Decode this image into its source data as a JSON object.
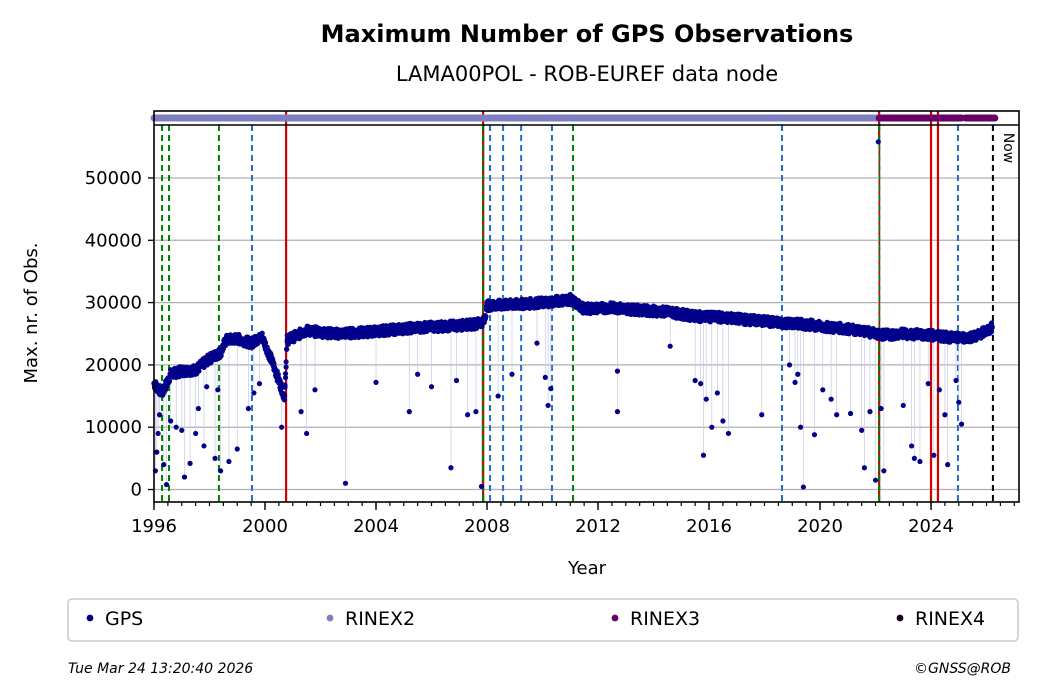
{
  "chart_data": {
    "type": "scatter",
    "title": "Maximum Number of GPS Observations",
    "subtitle": "LAMA00POL - ROB-EUREF data node",
    "xlabel": "Year",
    "ylabel": "Max. nr. of Obs.",
    "xlim": [
      1996,
      2027.17
    ],
    "ylim": [
      -2000,
      58500
    ],
    "xticks": [
      "1996",
      "2000",
      "2004",
      "2008",
      "2012",
      "2016",
      "2020",
      "2024"
    ],
    "yticks": [
      "0",
      "10000",
      "20000",
      "30000",
      "40000",
      "50000"
    ],
    "grid": "horizontal",
    "now_label": "Now",
    "colors": {
      "gps": "#00008b",
      "rinex2": "#7f7fbf",
      "rinex3": "#660066",
      "rinex4": "#1a001a",
      "green_event": "#008000",
      "blue_event": "#1f6fc6",
      "red_event": "#d40000",
      "now_line": "#000000"
    },
    "legend": {
      "placement": "bottom",
      "entries": [
        {
          "label": "GPS",
          "color": "#00008b"
        },
        {
          "label": "RINEX2",
          "color": "#7f7fbf"
        },
        {
          "label": "RINEX3",
          "color": "#660066"
        },
        {
          "label": "RINEX4",
          "color": "#1a001a"
        }
      ]
    },
    "rinex_periods": [
      {
        "name": "RINEX2",
        "start": 1996.0,
        "end": 2022.13
      },
      {
        "name": "RINEX3",
        "start": 2022.13,
        "end": 2025.1
      },
      {
        "name": "RINEX3",
        "start": 2025.25,
        "end": 2026.3
      }
    ],
    "event_lines": [
      {
        "x": 1996.29,
        "type": "green"
      },
      {
        "x": 1996.54,
        "type": "green"
      },
      {
        "x": 1998.34,
        "type": "green"
      },
      {
        "x": 1999.53,
        "type": "blue"
      },
      {
        "x": 2000.76,
        "type": "red"
      },
      {
        "x": 2007.86,
        "type": "green-red"
      },
      {
        "x": 2008.11,
        "type": "blue"
      },
      {
        "x": 2008.58,
        "type": "blue"
      },
      {
        "x": 2009.23,
        "type": "blue"
      },
      {
        "x": 2010.34,
        "type": "blue"
      },
      {
        "x": 2011.1,
        "type": "green"
      },
      {
        "x": 2018.63,
        "type": "blue"
      },
      {
        "x": 2022.13,
        "type": "green-red"
      },
      {
        "x": 2024.0,
        "type": "red"
      },
      {
        "x": 2024.25,
        "type": "red"
      },
      {
        "x": 2024.97,
        "type": "blue"
      },
      {
        "x": 2026.23,
        "type": "now"
      }
    ],
    "series": [
      {
        "name": "GPS",
        "trend": [
          [
            1996.0,
            17000
          ],
          [
            1996.3,
            15500
          ],
          [
            1996.6,
            18500
          ],
          [
            1997.0,
            19000
          ],
          [
            1997.5,
            19200
          ],
          [
            1998.0,
            21000
          ],
          [
            1998.4,
            22000
          ],
          [
            1998.6,
            24000
          ],
          [
            1999.0,
            24200
          ],
          [
            1999.5,
            23500
          ],
          [
            1999.9,
            24500
          ],
          [
            2000.3,
            20000
          ],
          [
            2000.7,
            15000
          ],
          [
            2000.8,
            24000
          ],
          [
            2001.5,
            25500
          ],
          [
            2002.5,
            25000
          ],
          [
            2003.5,
            25200
          ],
          [
            2004.5,
            25600
          ],
          [
            2005.5,
            26000
          ],
          [
            2006.5,
            26200
          ],
          [
            2007.5,
            26500
          ],
          [
            2007.9,
            27000
          ],
          [
            2008.0,
            29500
          ],
          [
            2009.0,
            29700
          ],
          [
            2010.0,
            30000
          ],
          [
            2011.0,
            30500
          ],
          [
            2011.5,
            29000
          ],
          [
            2012.5,
            29200
          ],
          [
            2013.5,
            28800
          ],
          [
            2014.5,
            28500
          ],
          [
            2015.5,
            27800
          ],
          [
            2016.5,
            27600
          ],
          [
            2017.5,
            27200
          ],
          [
            2018.5,
            26800
          ],
          [
            2019.5,
            26500
          ],
          [
            2020.5,
            26000
          ],
          [
            2021.5,
            25500
          ],
          [
            2022.2,
            24800
          ],
          [
            2023.0,
            25000
          ],
          [
            2024.0,
            24800
          ],
          [
            2024.5,
            24500
          ],
          [
            2025.0,
            24300
          ],
          [
            2025.6,
            24600
          ],
          [
            2026.0,
            25500
          ],
          [
            2026.2,
            26000
          ]
        ],
        "outliers": [
          [
            1996.05,
            3000
          ],
          [
            1996.1,
            6000
          ],
          [
            1996.15,
            9000
          ],
          [
            1996.2,
            12000
          ],
          [
            1996.35,
            4000
          ],
          [
            1996.45,
            800
          ],
          [
            1996.6,
            11000
          ],
          [
            1996.8,
            10000
          ],
          [
            1997.0,
            9500
          ],
          [
            1997.1,
            2000
          ],
          [
            1997.3,
            4200
          ],
          [
            1997.5,
            9000
          ],
          [
            1997.6,
            13000
          ],
          [
            1997.8,
            7000
          ],
          [
            1997.9,
            16500
          ],
          [
            1998.2,
            5000
          ],
          [
            1998.3,
            16000
          ],
          [
            1998.4,
            3000
          ],
          [
            1998.7,
            4500
          ],
          [
            1999.0,
            6500
          ],
          [
            1999.4,
            13000
          ],
          [
            1999.6,
            15500
          ],
          [
            1999.8,
            17000
          ],
          [
            2000.6,
            10000
          ],
          [
            2001.3,
            12500
          ],
          [
            2001.5,
            9000
          ],
          [
            2001.8,
            16000
          ],
          [
            2002.9,
            1000
          ],
          [
            2004.0,
            17200
          ],
          [
            2005.2,
            12500
          ],
          [
            2005.5,
            18500
          ],
          [
            2006.0,
            16500
          ],
          [
            2006.7,
            3500
          ],
          [
            2006.9,
            17500
          ],
          [
            2007.3,
            12000
          ],
          [
            2007.6,
            12500
          ],
          [
            2007.8,
            500
          ],
          [
            2008.4,
            15000
          ],
          [
            2008.9,
            18500
          ],
          [
            2009.8,
            23500
          ],
          [
            2010.1,
            18000
          ],
          [
            2010.3,
            16200
          ],
          [
            2010.2,
            13500
          ],
          [
            2012.7,
            19000
          ],
          [
            2012.7,
            12500
          ],
          [
            2014.6,
            23000
          ],
          [
            2015.5,
            17500
          ],
          [
            2015.7,
            17000
          ],
          [
            2015.8,
            5500
          ],
          [
            2015.9,
            14500
          ],
          [
            2016.1,
            10000
          ],
          [
            2016.3,
            15500
          ],
          [
            2016.5,
            11000
          ],
          [
            2016.7,
            9000
          ],
          [
            2017.9,
            12000
          ],
          [
            2018.9,
            20000
          ],
          [
            2019.1,
            17200
          ],
          [
            2019.2,
            18500
          ],
          [
            2019.3,
            10000
          ],
          [
            2019.4,
            400
          ],
          [
            2019.8,
            8800
          ],
          [
            2020.1,
            16000
          ],
          [
            2020.4,
            14500
          ],
          [
            2020.6,
            12000
          ],
          [
            2021.1,
            12200
          ],
          [
            2021.5,
            9500
          ],
          [
            2021.6,
            3500
          ],
          [
            2021.8,
            12500
          ],
          [
            2022.0,
            1500
          ],
          [
            2022.2,
            13000
          ],
          [
            2022.3,
            3000
          ],
          [
            2023.0,
            13500
          ],
          [
            2023.3,
            7000
          ],
          [
            2023.4,
            5000
          ],
          [
            2023.6,
            4500
          ],
          [
            2023.9,
            17000
          ],
          [
            2024.1,
            5500
          ],
          [
            2024.3,
            16000
          ],
          [
            2024.5,
            12000
          ],
          [
            2024.6,
            4000
          ],
          [
            2024.9,
            17500
          ],
          [
            2025.0,
            14000
          ],
          [
            2025.1,
            10500
          ],
          [
            2022.1,
            55800
          ]
        ]
      }
    ]
  },
  "footer": {
    "timestamp": "Tue Mar 24 13:20:40 2026",
    "copyright": "©GNSS@ROB"
  }
}
